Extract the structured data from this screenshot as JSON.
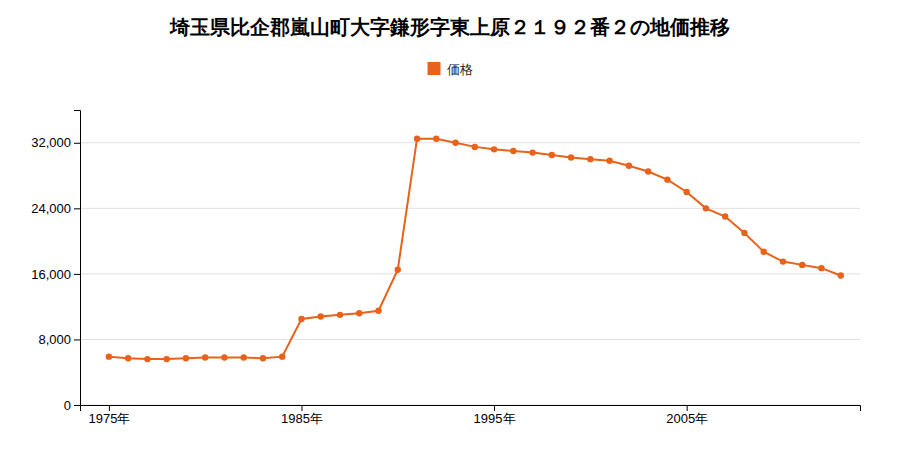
{
  "chart_data": {
    "type": "line",
    "title": "埼玉県比企郡嵐山町大字鎌形字東上原２１９２番２の地価推移",
    "x": [
      1975,
      1976,
      1977,
      1978,
      1979,
      1980,
      1981,
      1982,
      1983,
      1984,
      1985,
      1986,
      1987,
      1988,
      1989,
      1990,
      1991,
      1992,
      1993,
      1994,
      1995,
      1996,
      1997,
      1998,
      1999,
      2000,
      2001,
      2002,
      2003,
      2004,
      2005,
      2006,
      2007,
      2008,
      2009,
      2010,
      2011,
      2012,
      2013
    ],
    "series": [
      {
        "name": "価格",
        "color": "#e8621a",
        "marker": "circle",
        "values": [
          5900,
          5700,
          5600,
          5600,
          5700,
          5800,
          5800,
          5800,
          5700,
          5900,
          10500,
          10800,
          11000,
          11200,
          11500,
          16500,
          32500,
          32500,
          32000,
          31500,
          31200,
          31000,
          30800,
          30500,
          30200,
          30000,
          29800,
          29200,
          28500,
          27500,
          26000,
          24000,
          23000,
          21000,
          18700,
          17500,
          17100,
          16700,
          15800
        ]
      }
    ],
    "xlim": [
      1973.5,
      2014
    ],
    "xticks": [
      {
        "value": 1975,
        "label": "1975年"
      },
      {
        "value": 1985,
        "label": "1985年"
      },
      {
        "value": 1995,
        "label": "1995年"
      },
      {
        "value": 2005,
        "label": "2005年"
      }
    ],
    "ylim": [
      0,
      36000
    ],
    "yticks": [
      0,
      {
        "value": 8000,
        "label": "8,000"
      },
      {
        "value": 16000,
        "label": "16,000"
      },
      {
        "value": 24000,
        "label": "24,000"
      },
      {
        "value": 32000,
        "label": "32,000"
      }
    ],
    "grid": true,
    "legend": "top"
  }
}
